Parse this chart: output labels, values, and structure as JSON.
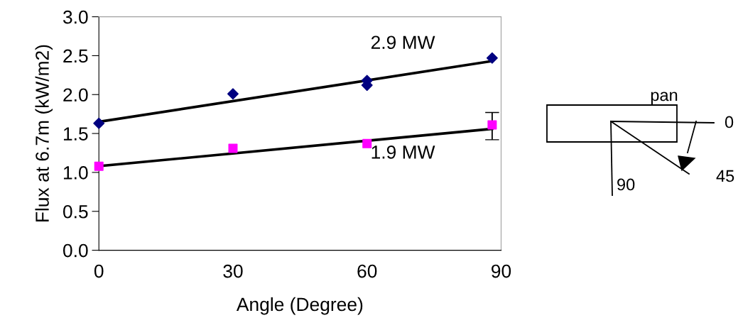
{
  "chart_data": {
    "type": "scatter",
    "xlabel": "Angle (Degree)",
    "ylabel": "Flux at 6.7m (kW/m2)",
    "series": [
      {
        "color": "#000080",
        "marker": "diamond",
        "x": [
          0,
          30,
          60,
          60,
          88
        ],
        "values": [
          1.63,
          2.01,
          2.18,
          2.12,
          2.47
        ]
      },
      {
        "color": "#ff00ff",
        "marker": "square",
        "x": [
          0,
          30,
          60,
          88
        ],
        "values": [
          1.08,
          1.31,
          1.37,
          1.61
        ]
      },
      {
        "type": "line",
        "name": "2.9 MW",
        "color": "#000000",
        "marker": "none",
        "x": [
          0,
          88
        ],
        "values": [
          1.65,
          2.43
        ]
      },
      {
        "type": "line",
        "name": "1.9 MW",
        "color": "#000000",
        "marker": "none",
        "x": [
          0,
          88
        ],
        "values": [
          1.08,
          1.56
        ],
        "errors": [
          null,
          [
            1.42,
            1.77
          ]
        ]
      }
    ],
    "xlim": [
      0,
      90
    ],
    "xticks": [
      0,
      30,
      60,
      90
    ],
    "ylim": [
      0,
      3
    ],
    "yticks": [
      {
        "value": 0,
        "label": "0.0"
      },
      {
        "value": 0.5,
        "label": "0.5"
      },
      {
        "value": 1,
        "label": "1.0"
      },
      {
        "value": 1.5,
        "label": "1.5"
      },
      {
        "value": 2,
        "label": "2.0"
      },
      {
        "value": 2.5,
        "label": "2.5"
      },
      {
        "value": 3,
        "label": "3.0"
      }
    ],
    "grid": false,
    "legend": false,
    "annotations": [
      "pan",
      "0",
      "45",
      "90"
    ]
  }
}
